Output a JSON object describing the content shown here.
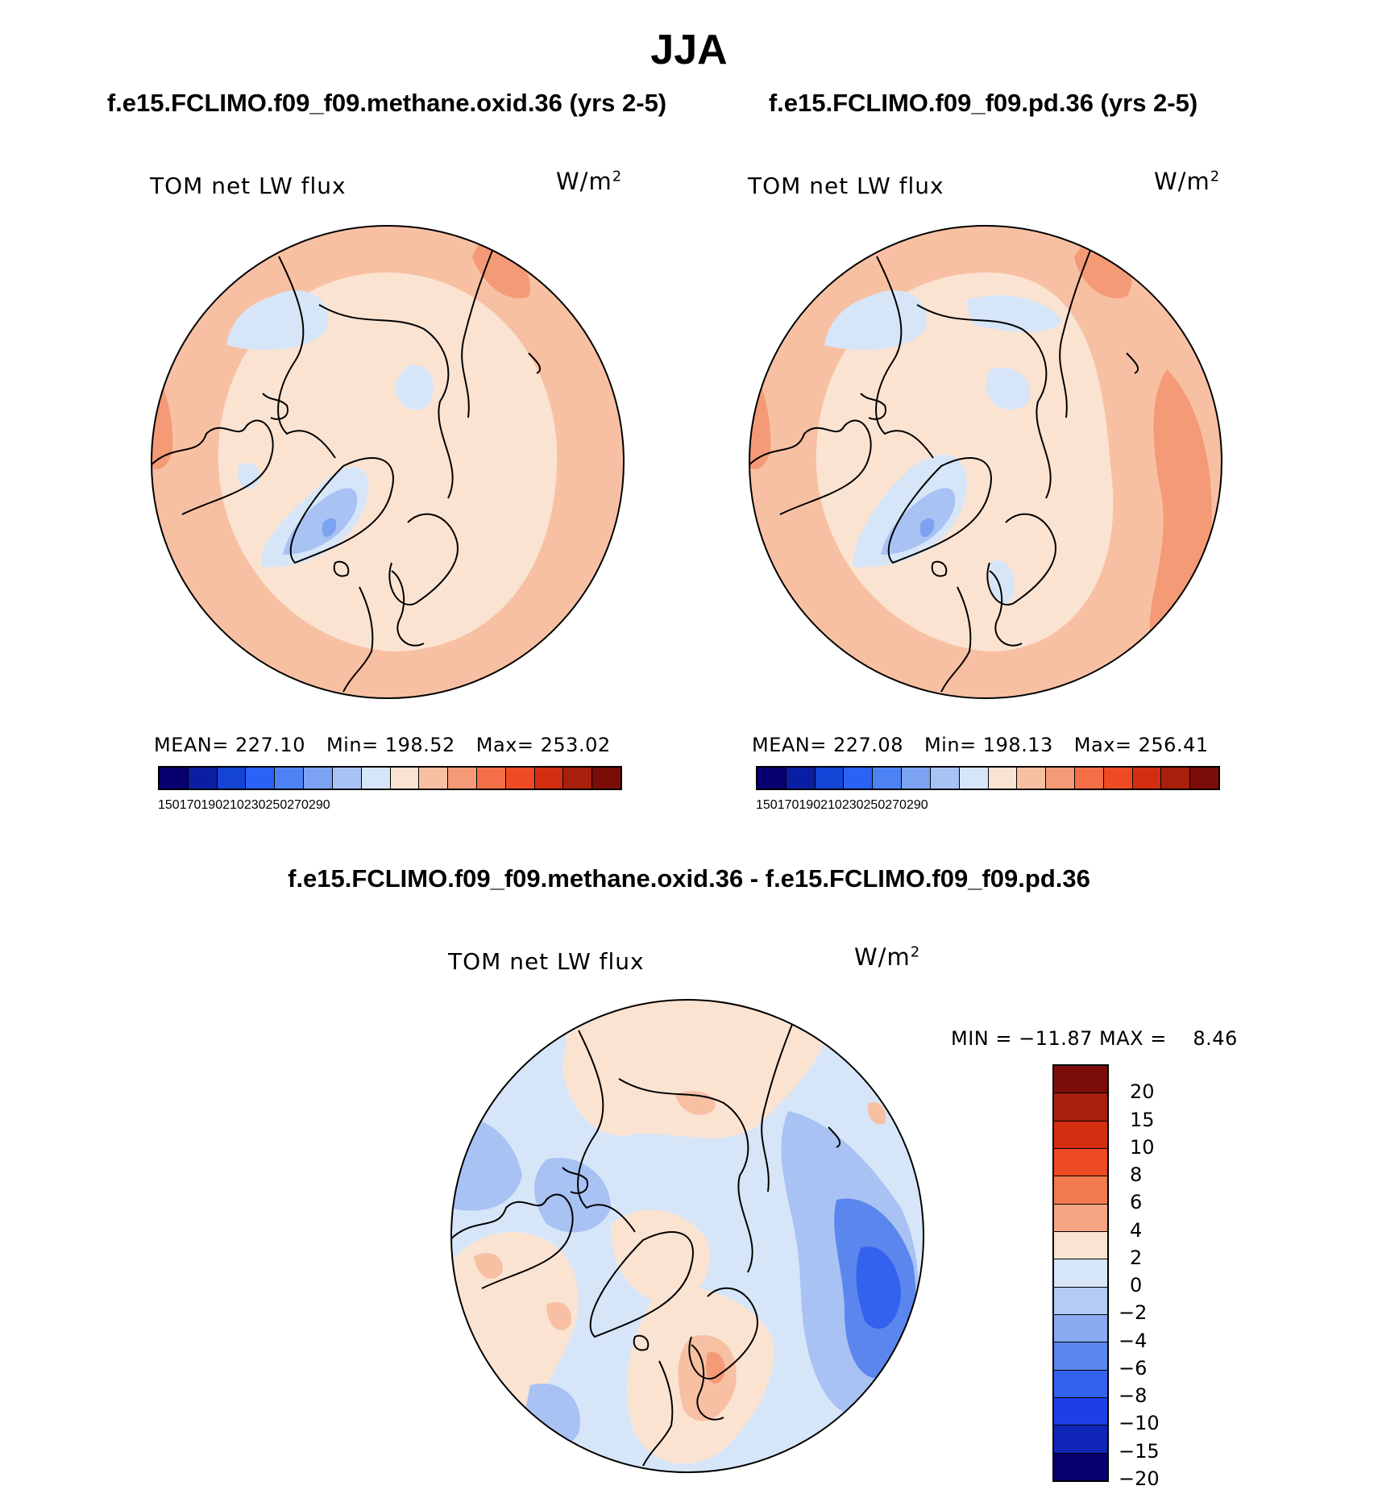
{
  "title": "JJA",
  "panels": [
    {
      "case_title": "f.e15.FCLIMO.f09_f09.methane.oxid.36 (yrs 2-5)",
      "variable_label": "TOM net LW flux",
      "units": "W/m",
      "units_exponent": "2",
      "stats": {
        "mean": "MEAN= 227.10",
        "min": "Min= 198.52",
        "max": "Max= 253.02"
      }
    },
    {
      "case_title": "f.e15.FCLIMO.f09_f09.pd.36 (yrs 2-5)",
      "variable_label": "TOM net LW flux",
      "units": "W/m",
      "units_exponent": "2",
      "stats": {
        "mean": "MEAN= 227.08",
        "min": "Min= 198.13",
        "max": "Max= 256.41"
      }
    }
  ],
  "abs_colorbar": {
    "colors": [
      "#08006e",
      "#0a1ea3",
      "#1444d4",
      "#2a62f5",
      "#4d82f5",
      "#7ca2f2",
      "#a9c2f4",
      "#d6e6f8",
      "#fbe3d2",
      "#f8c0a3",
      "#f49a76",
      "#f26f47",
      "#ee4a23",
      "#d42e12",
      "#a8200c",
      "#7a0d08"
    ],
    "ticks": [
      "150",
      "170",
      "190",
      "210",
      "230",
      "250",
      "270",
      "290"
    ]
  },
  "diff_panel": {
    "case_title": "f.e15.FCLIMO.f09_f09.methane.oxid.36 - f.e15.FCLIMO.f09_f09.pd.36",
    "variable_label": "TOM net LW flux",
    "units": "W/m",
    "units_exponent": "2",
    "minmax": "MIN = −11.87 MAX =    8.46",
    "colorbar": {
      "colors": [
        "#7a0d08",
        "#a8200c",
        "#d42e12",
        "#ee4a23",
        "#f27a4f",
        "#f6a583",
        "#fbe3d2",
        "#d6e6f8",
        "#b3ccf4",
        "#8aabf2",
        "#5a86ee",
        "#3462ee",
        "#1d3fe6",
        "#0f26b8",
        "#08006e"
      ],
      "ticks": [
        "20",
        "15",
        "10",
        "8",
        "6",
        "4",
        "2",
        "0",
        "−2",
        "−4",
        "−6",
        "−8",
        "−10",
        "−15",
        "−20"
      ]
    }
  },
  "map_colors": {
    "ocean_warm": "#fbe3d2",
    "warm2": "#f8c0a3",
    "warm3": "#f49a76",
    "cool1": "#d6e6f8",
    "cool2": "#a9c2f4",
    "cool3": "#7ca2f2",
    "diff_cool3": "#5a86ee",
    "diff_cool4": "#3462ee"
  }
}
